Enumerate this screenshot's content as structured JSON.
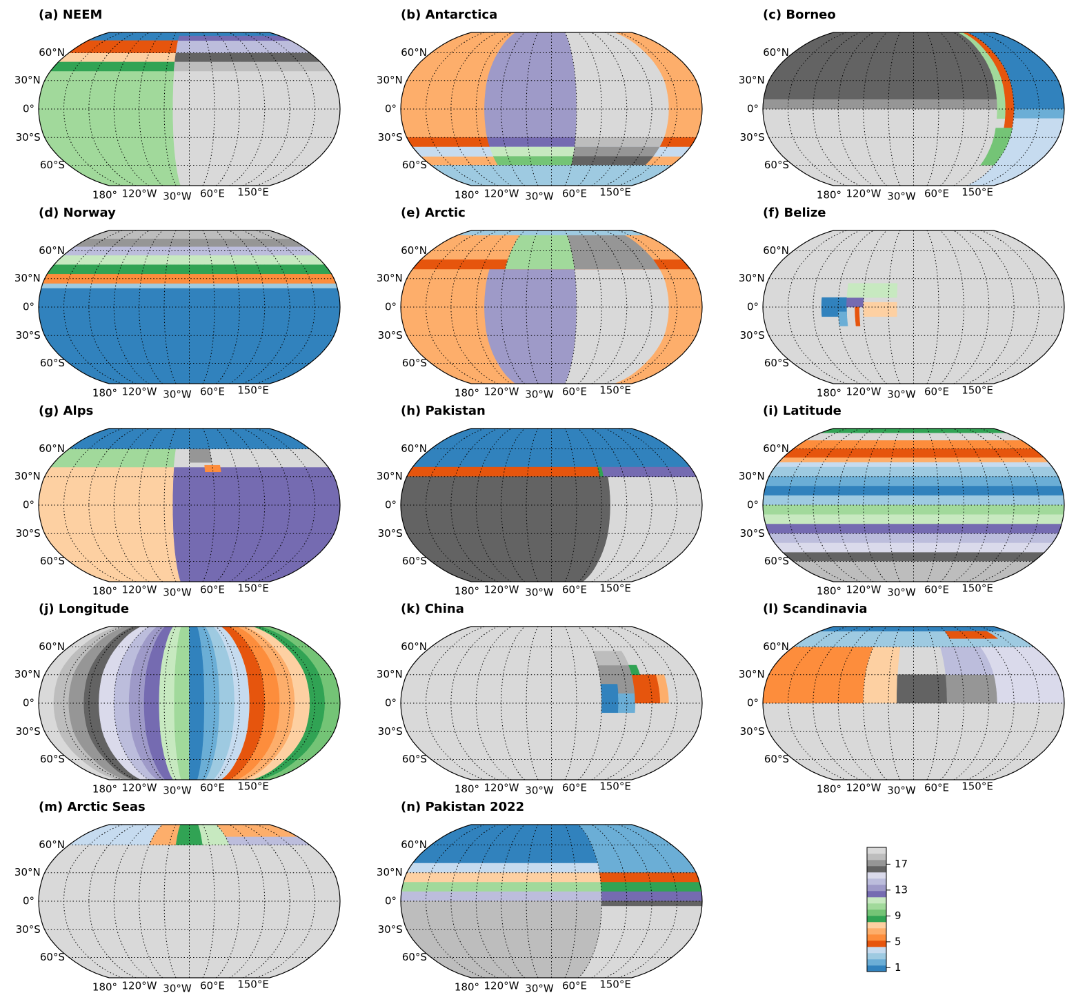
{
  "panels": [
    {
      "title": "(a) NEEM",
      "background": 19,
      "regions": [
        [
          75,
          90,
          -180,
          180,
          0
        ],
        [
          -90,
          40,
          -180,
          -20,
          10
        ],
        [
          40,
          50,
          -180,
          -20,
          8
        ],
        [
          50,
          60,
          -180,
          -20,
          7
        ],
        [
          60,
          75,
          -180,
          -20,
          4
        ],
        [
          40,
          50,
          -20,
          180,
          18
        ],
        [
          50,
          60,
          -20,
          180,
          16
        ],
        [
          60,
          75,
          -20,
          180,
          14
        ],
        [
          75,
          82,
          -20,
          180,
          12
        ]
      ]
    },
    {
      "title": "(b) Antarctica",
      "background": 6,
      "regions": [
        [
          -30,
          90,
          -80,
          30,
          13
        ],
        [
          -30,
          90,
          30,
          140,
          19
        ],
        [
          -40,
          -30,
          -180,
          180,
          4
        ],
        [
          -40,
          -30,
          -80,
          30,
          12
        ],
        [
          -40,
          -30,
          30,
          140,
          18
        ],
        [
          -50,
          -40,
          -180,
          180,
          3
        ],
        [
          -50,
          -40,
          -80,
          30,
          11
        ],
        [
          -50,
          -40,
          30,
          140,
          17
        ],
        [
          -60,
          -50,
          -80,
          30,
          9
        ],
        [
          -60,
          -50,
          30,
          140,
          16
        ],
        [
          -90,
          -60,
          -180,
          180,
          2
        ]
      ]
    },
    {
      "title": "(c) Borneo",
      "background": 19,
      "regions": [
        [
          10,
          90,
          -180,
          100,
          16
        ],
        [
          0,
          10,
          -180,
          100,
          17
        ],
        [
          -10,
          90,
          100,
          110,
          10
        ],
        [
          -20,
          90,
          110,
          120,
          4
        ],
        [
          0,
          90,
          120,
          180,
          0
        ],
        [
          -10,
          0,
          120,
          180,
          1
        ],
        [
          -90,
          -10,
          120,
          180,
          3
        ],
        [
          -60,
          -20,
          100,
          120,
          9
        ]
      ]
    },
    {
      "title": "(d) Norway",
      "background": 0,
      "regions": [
        [
          20,
          25,
          -180,
          180,
          2
        ],
        [
          25,
          35,
          -180,
          180,
          5
        ],
        [
          35,
          45,
          -180,
          180,
          8
        ],
        [
          45,
          55,
          -180,
          180,
          11
        ],
        [
          55,
          65,
          -180,
          180,
          14
        ],
        [
          65,
          75,
          -180,
          180,
          17
        ],
        [
          75,
          90,
          -180,
          180,
          18
        ]
      ]
    },
    {
      "title": "(e) Arctic",
      "background": 6,
      "regions": [
        [
          -90,
          40,
          -80,
          30,
          13
        ],
        [
          -90,
          40,
          30,
          140,
          19
        ],
        [
          40,
          50,
          -180,
          180,
          4
        ],
        [
          40,
          80,
          -60,
          30,
          10
        ],
        [
          40,
          80,
          30,
          140,
          17
        ],
        [
          80,
          90,
          -180,
          180,
          2
        ]
      ]
    },
    {
      "title": "(f) Belize",
      "background": 19,
      "regions": [
        [
          -10,
          10,
          -110,
          -80,
          0
        ],
        [
          -20,
          -5,
          -90,
          -80,
          1
        ],
        [
          0,
          10,
          -80,
          -60,
          12
        ],
        [
          10,
          25,
          -80,
          -20,
          11
        ],
        [
          -10,
          5,
          -60,
          -20,
          7
        ],
        [
          -20,
          0,
          -70,
          -65,
          4
        ]
      ]
    },
    {
      "title": "(g) Alps",
      "background": 12,
      "regions": [
        [
          -90,
          40,
          -180,
          -20,
          7
        ],
        [
          40,
          60,
          -180,
          -20,
          10
        ],
        [
          40,
          60,
          -20,
          180,
          19
        ],
        [
          45,
          60,
          0,
          30,
          17
        ],
        [
          35,
          42,
          20,
          40,
          5
        ],
        [
          60,
          90,
          -180,
          180,
          0
        ]
      ]
    },
    {
      "title": "(h) Pakistan",
      "background": 19,
      "regions": [
        [
          40,
          90,
          -180,
          180,
          0
        ],
        [
          30,
          40,
          -180,
          60,
          4
        ],
        [
          30,
          40,
          60,
          65,
          8
        ],
        [
          30,
          40,
          65,
          180,
          12
        ],
        [
          -90,
          30,
          -180,
          70,
          16
        ]
      ]
    },
    {
      "title": "(i) Latitude",
      "background": 19,
      "regions": [
        [
          80,
          90,
          -180,
          180,
          8
        ],
        [
          70,
          80,
          -180,
          180,
          19
        ],
        [
          60,
          70,
          -180,
          180,
          5
        ],
        [
          50,
          60,
          -180,
          180,
          4
        ],
        [
          45,
          50,
          -180,
          180,
          6
        ],
        [
          40,
          45,
          -180,
          180,
          3
        ],
        [
          30,
          40,
          -180,
          180,
          2
        ],
        [
          20,
          30,
          -180,
          180,
          1
        ],
        [
          10,
          20,
          -180,
          180,
          0
        ],
        [
          0,
          10,
          -180,
          180,
          2
        ],
        [
          -10,
          0,
          -180,
          180,
          10
        ],
        [
          -20,
          -10,
          -180,
          180,
          11
        ],
        [
          -30,
          -20,
          -180,
          180,
          12
        ],
        [
          -40,
          -30,
          -180,
          180,
          14
        ],
        [
          -50,
          -40,
          -180,
          180,
          15
        ],
        [
          -60,
          -50,
          -180,
          180,
          16
        ],
        [
          -90,
          -60,
          -180,
          180,
          18
        ]
      ]
    },
    {
      "title": "(j) Longitude",
      "background": 19,
      "regions": [
        [
          -90,
          90,
          -180,
          -162,
          19
        ],
        [
          -90,
          90,
          -162,
          -144,
          18
        ],
        [
          -90,
          90,
          -144,
          -126,
          17
        ],
        [
          -90,
          90,
          -126,
          -108,
          16
        ],
        [
          -90,
          90,
          -108,
          -90,
          15
        ],
        [
          -90,
          90,
          -90,
          -72,
          14
        ],
        [
          -90,
          90,
          -72,
          -54,
          13
        ],
        [
          -90,
          90,
          -54,
          -36,
          12
        ],
        [
          -90,
          90,
          -36,
          -18,
          11
        ],
        [
          -90,
          90,
          -18,
          0,
          10
        ],
        [
          -90,
          90,
          0,
          18,
          0
        ],
        [
          -90,
          90,
          18,
          36,
          1
        ],
        [
          -90,
          90,
          36,
          54,
          2
        ],
        [
          -90,
          90,
          54,
          72,
          3
        ],
        [
          -90,
          90,
          72,
          90,
          4
        ],
        [
          -90,
          90,
          90,
          108,
          5
        ],
        [
          -90,
          90,
          108,
          126,
          6
        ],
        [
          -90,
          90,
          126,
          144,
          7
        ],
        [
          -90,
          90,
          144,
          162,
          8
        ],
        [
          -90,
          90,
          162,
          180,
          9
        ]
      ]
    },
    {
      "title": "(k) China",
      "background": 19,
      "regions": [
        [
          10,
          55,
          60,
          100,
          17
        ],
        [
          40,
          55,
          60,
          100,
          18
        ],
        [
          -10,
          20,
          60,
          80,
          0
        ],
        [
          -10,
          10,
          80,
          100,
          1
        ],
        [
          0,
          30,
          100,
          130,
          4
        ],
        [
          0,
          30,
          130,
          140,
          6
        ],
        [
          30,
          40,
          100,
          110,
          8
        ]
      ]
    },
    {
      "title": "(l) Scandinavia",
      "background": 19,
      "regions": [
        [
          0,
          60,
          -180,
          -60,
          5
        ],
        [
          0,
          60,
          -60,
          -20,
          7
        ],
        [
          0,
          30,
          -20,
          40,
          16
        ],
        [
          0,
          30,
          40,
          100,
          17
        ],
        [
          30,
          60,
          40,
          100,
          14
        ],
        [
          0,
          60,
          100,
          180,
          15
        ],
        [
          60,
          90,
          -180,
          180,
          2
        ],
        [
          80,
          90,
          -180,
          180,
          0
        ],
        [
          70,
          80,
          60,
          140,
          4
        ]
      ]
    },
    {
      "title": "(m) Arctic Seas",
      "background": 19,
      "regions": [
        [
          60,
          90,
          -180,
          -60,
          3
        ],
        [
          60,
          90,
          -60,
          -20,
          6
        ],
        [
          60,
          90,
          -20,
          20,
          8
        ],
        [
          60,
          90,
          20,
          60,
          11
        ],
        [
          60,
          70,
          60,
          180,
          14
        ],
        [
          70,
          90,
          60,
          180,
          6
        ]
      ]
    },
    {
      "title": "(n) Pakistan 2022",
      "background": 19,
      "regions": [
        [
          40,
          90,
          -180,
          60,
          0
        ],
        [
          30,
          90,
          60,
          180,
          1
        ],
        [
          30,
          40,
          -180,
          60,
          3
        ],
        [
          20,
          30,
          -180,
          60,
          7
        ],
        [
          10,
          20,
          -180,
          60,
          10
        ],
        [
          0,
          10,
          -180,
          60,
          14
        ],
        [
          -90,
          0,
          -180,
          60,
          18
        ],
        [
          20,
          30,
          60,
          180,
          4
        ],
        [
          10,
          20,
          60,
          180,
          8
        ],
        [
          0,
          10,
          60,
          180,
          12
        ],
        [
          -5,
          0,
          60,
          180,
          16
        ]
      ]
    }
  ],
  "lat_labels": [
    {
      "value": 60,
      "label": "60°N"
    },
    {
      "value": 30,
      "label": "30°N"
    },
    {
      "value": 0,
      "label": "0°"
    },
    {
      "value": -30,
      "label": "30°S"
    },
    {
      "value": -60,
      "label": "60°S"
    }
  ],
  "lon_labels": [
    "180°",
    "120°W",
    "30°W",
    "60°E",
    "150°E"
  ],
  "colors": [
    "#3182bd",
    "#6baed6",
    "#9ecae1",
    "#c6dbef",
    "#e6550d",
    "#fd8d3c",
    "#fdae6b",
    "#fdd0a2",
    "#31a354",
    "#74c476",
    "#a1d99b",
    "#c7e9c0",
    "#756bb1",
    "#9e9ac8",
    "#bcbddc",
    "#dadaeb",
    "#636363",
    "#969696",
    "#bdbdbd",
    "#d9d9d9"
  ],
  "colorbar": {
    "lim": [
      0.4,
      19.6
    ],
    "ticks": [
      1,
      5,
      9,
      13,
      17
    ]
  }
}
